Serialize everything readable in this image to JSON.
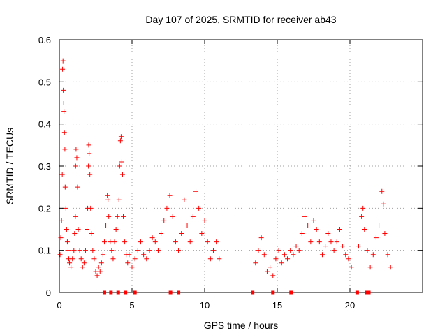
{
  "chart_data": {
    "type": "scatter",
    "title": "Day 107 of 2025, SRMTID for receiver ab43",
    "xlabel": "GPS time / hours",
    "ylabel": "SRMTID / TECUs",
    "xlim": [
      0,
      25
    ],
    "ylim": [
      0,
      0.6
    ],
    "x_ticks": [
      0,
      5,
      10,
      15,
      20
    ],
    "x_tick_labels": [
      "0",
      "5",
      "10",
      "15",
      "20"
    ],
    "y_ticks": [
      0,
      0.1,
      0.2,
      0.3,
      0.4,
      0.5,
      0.6
    ],
    "y_tick_labels": [
      "0",
      "0.1",
      "0.2",
      "0.3",
      "0.4",
      "0.5",
      "0.6"
    ],
    "grid": true,
    "marker": "plus",
    "color": "#ff0000",
    "series": [
      {
        "name": "SRMTID",
        "points": [
          [
            0.05,
            0.09
          ],
          [
            0.1,
            0.13
          ],
          [
            0.15,
            0.17
          ],
          [
            0.2,
            0.28
          ],
          [
            0.22,
            0.53
          ],
          [
            0.25,
            0.55
          ],
          [
            0.27,
            0.48
          ],
          [
            0.3,
            0.45
          ],
          [
            0.32,
            0.43
          ],
          [
            0.35,
            0.38
          ],
          [
            0.38,
            0.34
          ],
          [
            0.4,
            0.25
          ],
          [
            0.45,
            0.2
          ],
          [
            0.5,
            0.15
          ],
          [
            0.55,
            0.12
          ],
          [
            0.6,
            0.1
          ],
          [
            0.65,
            0.08
          ],
          [
            0.7,
            0.07
          ],
          [
            0.8,
            0.06
          ],
          [
            0.9,
            0.08
          ],
          [
            1.0,
            0.1
          ],
          [
            1.05,
            0.14
          ],
          [
            1.1,
            0.18
          ],
          [
            1.12,
            0.3
          ],
          [
            1.15,
            0.34
          ],
          [
            1.2,
            0.32
          ],
          [
            1.25,
            0.25
          ],
          [
            1.3,
            0.15
          ],
          [
            1.4,
            0.1
          ],
          [
            1.5,
            0.08
          ],
          [
            1.6,
            0.06
          ],
          [
            1.7,
            0.07
          ],
          [
            1.8,
            0.1
          ],
          [
            1.9,
            0.15
          ],
          [
            1.95,
            0.2
          ],
          [
            2.0,
            0.3
          ],
          [
            2.02,
            0.35
          ],
          [
            2.05,
            0.33
          ],
          [
            2.1,
            0.28
          ],
          [
            2.15,
            0.2
          ],
          [
            2.2,
            0.14
          ],
          [
            2.3,
            0.1
          ],
          [
            2.4,
            0.08
          ],
          [
            2.5,
            0.05
          ],
          [
            2.6,
            0.04
          ],
          [
            2.7,
            0.06
          ],
          [
            2.8,
            0.05
          ],
          [
            2.9,
            0.07
          ],
          [
            3.0,
            0.09
          ],
          [
            3.1,
            0.12
          ],
          [
            3.2,
            0.16
          ],
          [
            3.3,
            0.23
          ],
          [
            3.35,
            0.22
          ],
          [
            3.4,
            0.18
          ],
          [
            3.5,
            0.12
          ],
          [
            3.6,
            0.1
          ],
          [
            3.7,
            0.08
          ],
          [
            3.8,
            0.12
          ],
          [
            3.9,
            0.15
          ],
          [
            4.0,
            0.18
          ],
          [
            4.1,
            0.22
          ],
          [
            4.15,
            0.3
          ],
          [
            4.2,
            0.36
          ],
          [
            4.25,
            0.37
          ],
          [
            4.3,
            0.31
          ],
          [
            4.35,
            0.28
          ],
          [
            4.4,
            0.18
          ],
          [
            4.5,
            0.12
          ],
          [
            4.6,
            0.09
          ],
          [
            4.7,
            0.07
          ],
          [
            4.8,
            0.09
          ],
          [
            5.0,
            0.06
          ],
          [
            5.2,
            0.08
          ],
          [
            5.4,
            0.1
          ],
          [
            5.6,
            0.12
          ],
          [
            5.8,
            0.09
          ],
          [
            6.0,
            0.08
          ],
          [
            6.2,
            0.1
          ],
          [
            6.4,
            0.13
          ],
          [
            6.6,
            0.12
          ],
          [
            6.8,
            0.1
          ],
          [
            7.0,
            0.14
          ],
          [
            7.2,
            0.17
          ],
          [
            7.4,
            0.2
          ],
          [
            7.6,
            0.23
          ],
          [
            7.8,
            0.18
          ],
          [
            8.0,
            0.12
          ],
          [
            8.2,
            0.1
          ],
          [
            8.4,
            0.14
          ],
          [
            8.6,
            0.22
          ],
          [
            8.8,
            0.16
          ],
          [
            9.0,
            0.12
          ],
          [
            9.2,
            0.18
          ],
          [
            9.4,
            0.24
          ],
          [
            9.6,
            0.2
          ],
          [
            9.8,
            0.14
          ],
          [
            10.0,
            0.17
          ],
          [
            10.2,
            0.12
          ],
          [
            10.4,
            0.08
          ],
          [
            10.6,
            0.1
          ],
          [
            10.8,
            0.12
          ],
          [
            11.0,
            0.08
          ],
          [
            13.5,
            0.07
          ],
          [
            13.7,
            0.1
          ],
          [
            13.9,
            0.13
          ],
          [
            14.1,
            0.09
          ],
          [
            14.3,
            0.05
          ],
          [
            14.5,
            0.06
          ],
          [
            14.7,
            0.04
          ],
          [
            14.9,
            0.08
          ],
          [
            15.1,
            0.1
          ],
          [
            15.3,
            0.07
          ],
          [
            15.5,
            0.09
          ],
          [
            15.7,
            0.08
          ],
          [
            15.9,
            0.1
          ],
          [
            16.1,
            0.09
          ],
          [
            16.3,
            0.11
          ],
          [
            16.5,
            0.1
          ],
          [
            16.7,
            0.14
          ],
          [
            16.9,
            0.18
          ],
          [
            17.1,
            0.16
          ],
          [
            17.3,
            0.12
          ],
          [
            17.5,
            0.17
          ],
          [
            17.7,
            0.15
          ],
          [
            17.9,
            0.12
          ],
          [
            18.1,
            0.09
          ],
          [
            18.3,
            0.11
          ],
          [
            18.5,
            0.14
          ],
          [
            18.7,
            0.12
          ],
          [
            18.9,
            0.1
          ],
          [
            19.1,
            0.12
          ],
          [
            19.3,
            0.15
          ],
          [
            19.5,
            0.11
          ],
          [
            19.7,
            0.09
          ],
          [
            19.9,
            0.08
          ],
          [
            20.1,
            0.06
          ],
          [
            20.6,
            0.11
          ],
          [
            20.8,
            0.18
          ],
          [
            20.9,
            0.2
          ],
          [
            21.0,
            0.15
          ],
          [
            21.2,
            0.1
          ],
          [
            21.4,
            0.06
          ],
          [
            21.6,
            0.09
          ],
          [
            21.8,
            0.13
          ],
          [
            22.0,
            0.16
          ],
          [
            22.2,
            0.24
          ],
          [
            22.3,
            0.21
          ],
          [
            22.4,
            0.14
          ],
          [
            22.6,
            0.09
          ],
          [
            22.8,
            0.06
          ]
        ]
      }
    ],
    "zero_points": [
      3.1,
      3.55,
      4.05,
      4.55,
      5.2,
      7.65,
      8.2,
      13.3,
      14.7,
      15.95,
      20.5,
      21.15,
      21.3
    ]
  }
}
